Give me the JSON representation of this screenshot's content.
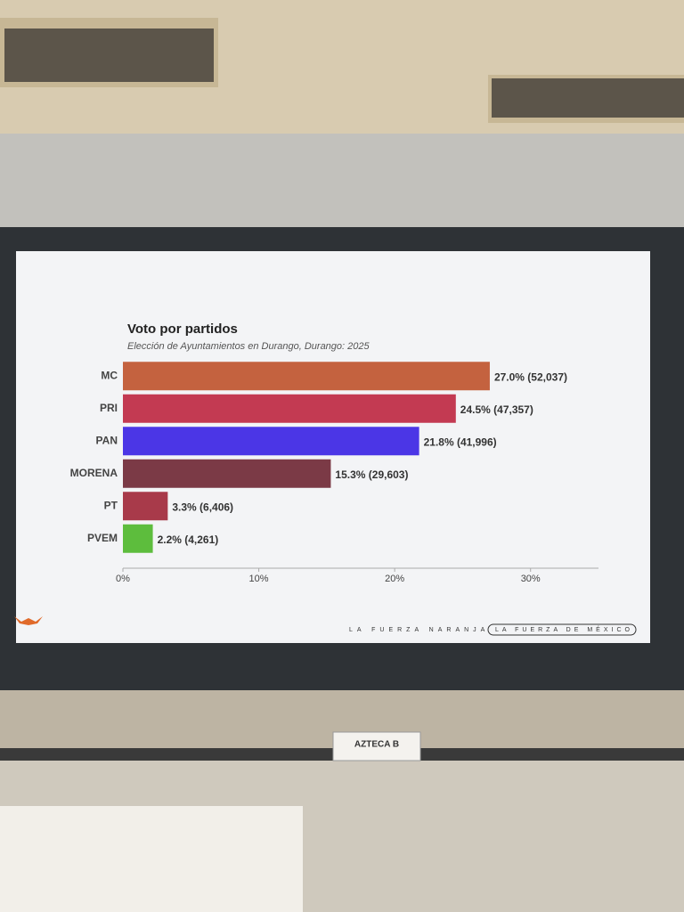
{
  "chart_data": {
    "type": "bar",
    "orientation": "horizontal",
    "title": "Voto por partidos",
    "subtitle": "Elección de Ayuntamientos en Durango, Durango: 2025",
    "categories": [
      "MC",
      "PRI",
      "PAN",
      "MORENA",
      "PT",
      "PVEM"
    ],
    "values": [
      27.0,
      24.5,
      21.8,
      15.3,
      3.3,
      2.2
    ],
    "value_labels": [
      "27.0% (52,037)",
      "24.5% (47,357)",
      "21.8% (41,996)",
      "15.3% (29,603)",
      "3.3% (6,406)",
      "2.2% (4,261)"
    ],
    "colors": [
      "#c4623f",
      "#c33a52",
      "#4b36e6",
      "#7b3a46",
      "#a83a4a",
      "#5dbd3d"
    ],
    "xlim": [
      0,
      35
    ],
    "xticks": [
      {
        "value": 0,
        "label": "0%"
      },
      {
        "value": 10,
        "label": "10%"
      },
      {
        "value": 20,
        "label": "20%"
      },
      {
        "value": 30,
        "label": "30%"
      }
    ],
    "grid": false,
    "footer": [
      "LA FUERZA NARANJA",
      "LA FUERZA DE MÉXICO"
    ]
  },
  "placard": "AZTECA B"
}
